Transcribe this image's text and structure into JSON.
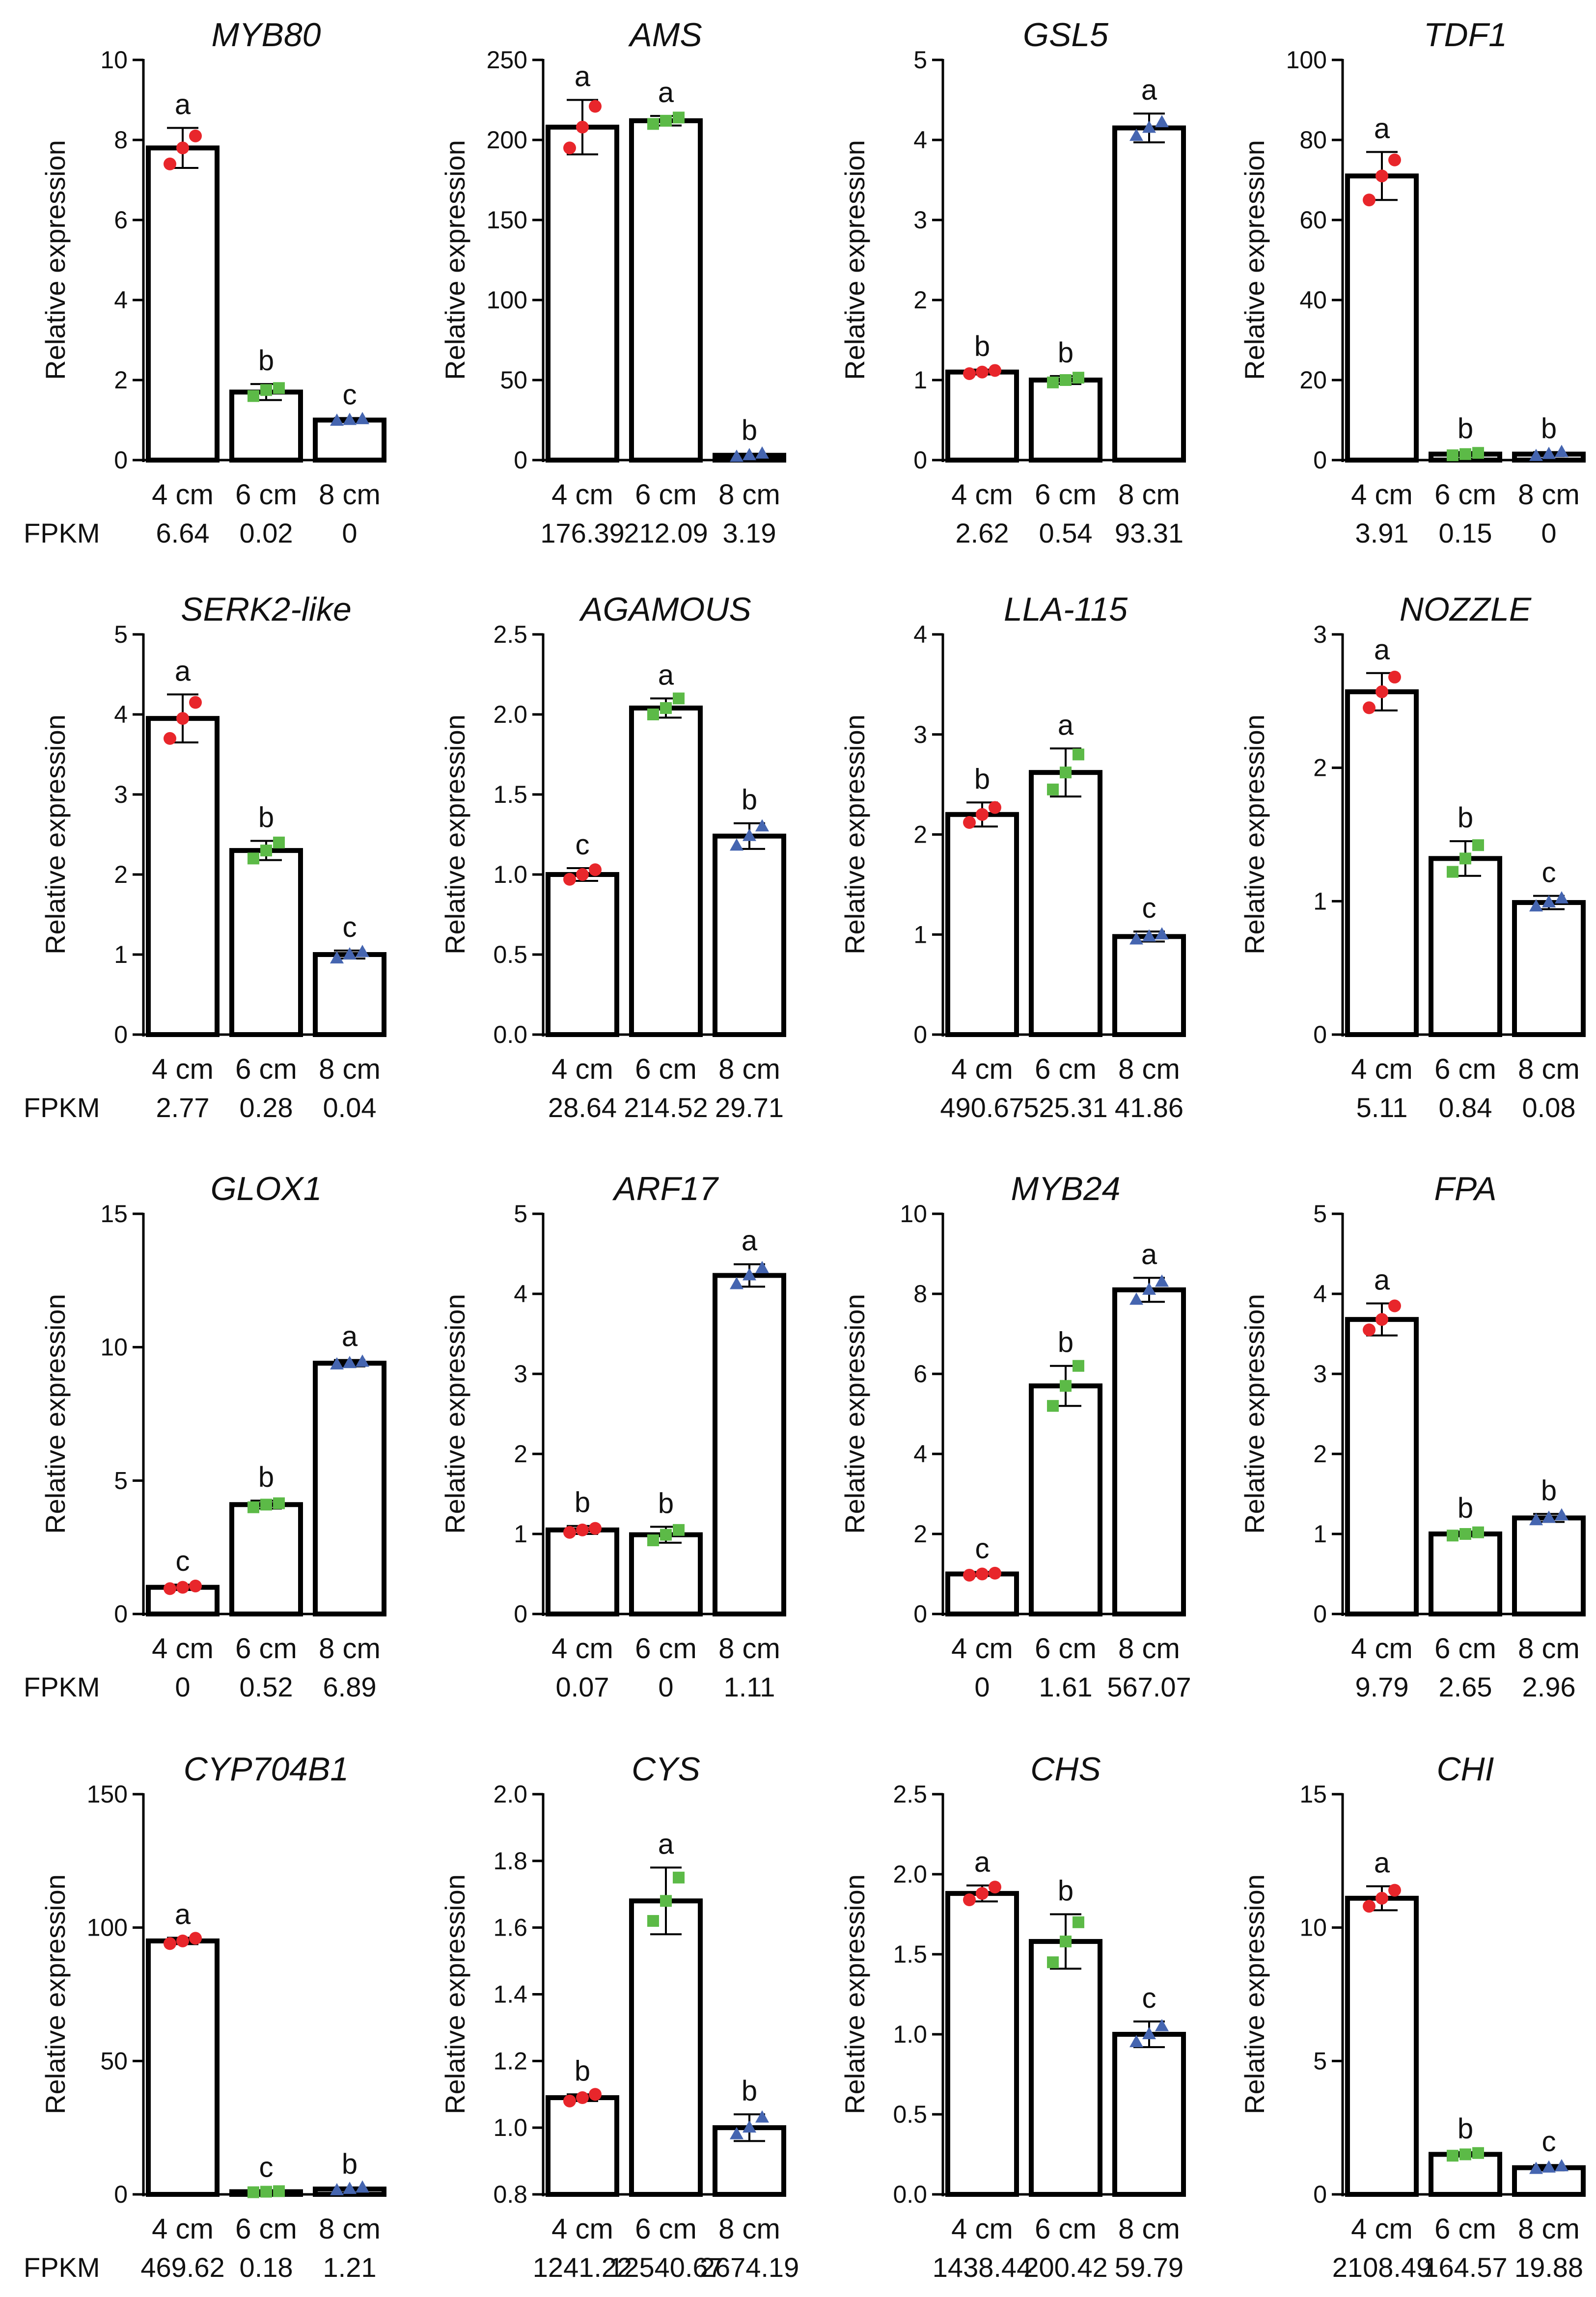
{
  "chart_data": [
    {
      "type": "bar",
      "title": "MYB80",
      "ylabel": "Relative expression",
      "ylim": [
        0,
        10
      ],
      "yticks": [
        0,
        2,
        4,
        6,
        8,
        10
      ],
      "categories": [
        "4 cm",
        "6 cm",
        "8 cm"
      ],
      "values": [
        7.8,
        1.7,
        1.0
      ],
      "errors": [
        0.5,
        0.2,
        0.05
      ],
      "points": [
        [
          7.4,
          7.8,
          8.1
        ],
        [
          1.6,
          1.75,
          1.8
        ],
        [
          0.98,
          1.0,
          1.02
        ]
      ],
      "letters": [
        "a",
        "b",
        "c"
      ],
      "fpkm_label": "FPKM",
      "fpkm": [
        "6.64",
        "0.02",
        "0"
      ]
    },
    {
      "type": "bar",
      "title": "AMS",
      "ylabel": "Relative expression",
      "ylim": [
        0,
        250
      ],
      "yticks": [
        0,
        50,
        100,
        150,
        200,
        250
      ],
      "categories": [
        "4 cm",
        "6 cm",
        "8 cm"
      ],
      "values": [
        208,
        212,
        3
      ],
      "errors": [
        17,
        3,
        1
      ],
      "points": [
        [
          195,
          208,
          221
        ],
        [
          210,
          212,
          214
        ],
        [
          2,
          3,
          4
        ]
      ],
      "letters": [
        "a",
        "a",
        "b"
      ],
      "fpkm_label": "",
      "fpkm": [
        "176.39",
        "212.09",
        "3.19"
      ]
    },
    {
      "type": "bar",
      "title": "GSL5",
      "ylabel": "Relative expression",
      "ylim": [
        0,
        5
      ],
      "yticks": [
        0,
        1,
        2,
        3,
        4,
        5
      ],
      "categories": [
        "4 cm",
        "6 cm",
        "8 cm"
      ],
      "values": [
        1.1,
        1.0,
        4.15
      ],
      "errors": [
        0.03,
        0.05,
        0.18
      ],
      "points": [
        [
          1.08,
          1.1,
          1.12
        ],
        [
          0.97,
          1.0,
          1.03
        ],
        [
          4.05,
          4.15,
          4.22
        ]
      ],
      "letters": [
        "b",
        "b",
        "a"
      ],
      "fpkm_label": "",
      "fpkm": [
        "2.62",
        "0.54",
        "93.31"
      ]
    },
    {
      "type": "bar",
      "title": "TDF1",
      "ylabel": "Relative expression",
      "ylim": [
        0,
        100
      ],
      "yticks": [
        0,
        20,
        40,
        60,
        80,
        100
      ],
      "categories": [
        "4 cm",
        "6 cm",
        "8 cm"
      ],
      "values": [
        71,
        1.5,
        1.5
      ],
      "errors": [
        6,
        0.5,
        0.5
      ],
      "points": [
        [
          65,
          71,
          75
        ],
        [
          1.2,
          1.5,
          1.8
        ],
        [
          1.0,
          1.5,
          2.0
        ]
      ],
      "letters": [
        "a",
        "b",
        "b"
      ],
      "fpkm_label": "",
      "fpkm": [
        "3.91",
        "0.15",
        "0"
      ]
    },
    {
      "type": "bar",
      "title": "SERK2-like",
      "ylabel": "Relative expression",
      "ylim": [
        0,
        5
      ],
      "yticks": [
        0,
        1,
        2,
        3,
        4,
        5
      ],
      "categories": [
        "4 cm",
        "6 cm",
        "8 cm"
      ],
      "values": [
        3.95,
        2.3,
        1.0
      ],
      "errors": [
        0.3,
        0.12,
        0.05
      ],
      "points": [
        [
          3.7,
          3.95,
          4.15
        ],
        [
          2.2,
          2.3,
          2.4
        ],
        [
          0.95,
          1.0,
          1.03
        ]
      ],
      "letters": [
        "a",
        "b",
        "c"
      ],
      "fpkm_label": "FPKM",
      "fpkm": [
        "2.77",
        "0.28",
        "0.04"
      ]
    },
    {
      "type": "bar",
      "title": "AGAMOUS",
      "ylabel": "Relative expression",
      "ylim": [
        0,
        2.5
      ],
      "yticks": [
        "0.0",
        "0.5",
        "1.0",
        "1.5",
        "2.0",
        "2.5"
      ],
      "categories": [
        "4 cm",
        "6 cm",
        "8 cm"
      ],
      "values": [
        1.0,
        2.04,
        1.24
      ],
      "errors": [
        0.04,
        0.06,
        0.08
      ],
      "points": [
        [
          0.97,
          1.0,
          1.03
        ],
        [
          2.0,
          2.04,
          2.1
        ],
        [
          1.18,
          1.24,
          1.3
        ]
      ],
      "letters": [
        "c",
        "a",
        "b"
      ],
      "fpkm_label": "",
      "fpkm": [
        "28.64",
        "214.52",
        "29.71"
      ]
    },
    {
      "type": "bar",
      "title": "LLA-115",
      "ylabel": "Relative expression",
      "ylim": [
        0,
        4
      ],
      "yticks": [
        0,
        1,
        2,
        3,
        4
      ],
      "categories": [
        "4 cm",
        "6 cm",
        "8 cm"
      ],
      "values": [
        2.2,
        2.62,
        0.98
      ],
      "errors": [
        0.12,
        0.24,
        0.05
      ],
      "points": [
        [
          2.12,
          2.2,
          2.27
        ],
        [
          2.45,
          2.62,
          2.8
        ],
        [
          0.95,
          0.98,
          1.0
        ]
      ],
      "letters": [
        "b",
        "a",
        "c"
      ],
      "fpkm_label": "",
      "fpkm": [
        "490.67",
        "525.31",
        "41.86"
      ]
    },
    {
      "type": "bar",
      "title": "NOZZLE",
      "ylabel": "Relative expression",
      "ylim": [
        0,
        3
      ],
      "yticks": [
        0,
        1,
        2,
        3
      ],
      "categories": [
        "4 cm",
        "6 cm",
        "8 cm"
      ],
      "values": [
        2.57,
        1.32,
        0.99
      ],
      "errors": [
        0.14,
        0.13,
        0.05
      ],
      "points": [
        [
          2.45,
          2.57,
          2.68
        ],
        [
          1.22,
          1.32,
          1.42
        ],
        [
          0.96,
          0.99,
          1.02
        ]
      ],
      "letters": [
        "a",
        "b",
        "c"
      ],
      "fpkm_label": "",
      "fpkm": [
        "5.11",
        "0.84",
        "0.08"
      ]
    },
    {
      "type": "bar",
      "title": "GLOX1",
      "ylabel": "Relative expression",
      "ylim": [
        0,
        15
      ],
      "yticks": [
        0,
        5,
        10,
        15
      ],
      "categories": [
        "4 cm",
        "6 cm",
        "8 cm"
      ],
      "values": [
        1.0,
        4.1,
        9.4
      ],
      "errors": [
        0.1,
        0.15,
        0.12
      ],
      "points": [
        [
          0.95,
          1.0,
          1.05
        ],
        [
          4.0,
          4.1,
          4.15
        ],
        [
          9.35,
          9.4,
          9.45
        ]
      ],
      "letters": [
        "c",
        "b",
        "a"
      ],
      "fpkm_label": "FPKM",
      "fpkm": [
        "0",
        "0.52",
        "6.89"
      ]
    },
    {
      "type": "bar",
      "title": "ARF17",
      "ylabel": "Relative expression",
      "ylim": [
        0,
        5
      ],
      "yticks": [
        0,
        1,
        2,
        3,
        4,
        5
      ],
      "categories": [
        "4 cm",
        "6 cm",
        "8 cm"
      ],
      "values": [
        1.05,
        0.99,
        4.23
      ],
      "errors": [
        0.05,
        0.1,
        0.14
      ],
      "points": [
        [
          1.02,
          1.05,
          1.07
        ],
        [
          0.92,
          0.99,
          1.05
        ],
        [
          4.12,
          4.23,
          4.32
        ]
      ],
      "letters": [
        "b",
        "b",
        "a"
      ],
      "fpkm_label": "",
      "fpkm": [
        "0.07",
        "0",
        "1.11"
      ]
    },
    {
      "type": "bar",
      "title": "MYB24",
      "ylabel": "Relative expression",
      "ylim": [
        0,
        10
      ],
      "yticks": [
        0,
        2,
        4,
        6,
        8,
        10
      ],
      "categories": [
        "4 cm",
        "6 cm",
        "8 cm"
      ],
      "values": [
        1.0,
        5.7,
        8.1
      ],
      "errors": [
        0.05,
        0.5,
        0.3
      ],
      "points": [
        [
          0.97,
          1.0,
          1.02
        ],
        [
          5.2,
          5.7,
          6.2
        ],
        [
          7.85,
          8.1,
          8.3
        ]
      ],
      "letters": [
        "c",
        "b",
        "a"
      ],
      "fpkm_label": "",
      "fpkm": [
        "0",
        "1.61",
        "567.07"
      ]
    },
    {
      "type": "bar",
      "title": "FPA",
      "ylabel": "Relative expression",
      "ylim": [
        0,
        5
      ],
      "yticks": [
        0,
        1,
        2,
        3,
        4,
        5
      ],
      "categories": [
        "4 cm",
        "6 cm",
        "8 cm"
      ],
      "values": [
        3.68,
        1.0,
        1.2
      ],
      "errors": [
        0.2,
        0.03,
        0.05
      ],
      "points": [
        [
          3.55,
          3.68,
          3.85
        ],
        [
          0.98,
          1.0,
          1.02
        ],
        [
          1.17,
          1.2,
          1.23
        ]
      ],
      "letters": [
        "a",
        "b",
        "b"
      ],
      "fpkm_label": "",
      "fpkm": [
        "9.79",
        "2.65",
        "2.96"
      ]
    },
    {
      "type": "bar",
      "title": "CYP704B1",
      "ylabel": "Relative expression",
      "ylim": [
        0,
        150
      ],
      "yticks": [
        0,
        50,
        100,
        150
      ],
      "categories": [
        "4 cm",
        "6 cm",
        "8 cm"
      ],
      "values": [
        95,
        1.0,
        2.0
      ],
      "errors": [
        1.2,
        0.4,
        0.6
      ],
      "points": [
        [
          94,
          95,
          96
        ],
        [
          0.8,
          1.0,
          1.2
        ],
        [
          1.5,
          2.0,
          2.5
        ]
      ],
      "letters": [
        "a",
        "c",
        "b"
      ],
      "fpkm_label": "FPKM",
      "fpkm": [
        "469.62",
        "0.18",
        "1.21"
      ]
    },
    {
      "type": "bar",
      "title": "CYS",
      "ylabel": "Relative expression",
      "ylim": [
        0.8,
        2.0
      ],
      "yticks": [
        "0.8",
        "1.0",
        "1.2",
        "1.4",
        "1.6",
        "1.8",
        "2.0"
      ],
      "categories": [
        "4 cm",
        "6 cm",
        "8 cm"
      ],
      "values": [
        1.09,
        1.68,
        1.0
      ],
      "errors": [
        0.01,
        0.1,
        0.04
      ],
      "points": [
        [
          1.08,
          1.09,
          1.1
        ],
        [
          1.62,
          1.68,
          1.75
        ],
        [
          0.98,
          1.0,
          1.03
        ]
      ],
      "letters": [
        "b",
        "a",
        "b"
      ],
      "fpkm_label": "",
      "fpkm": [
        "1241.22",
        "12540.67",
        "2674.19"
      ]
    },
    {
      "type": "bar",
      "title": "CHS",
      "ylabel": "Relative expression",
      "ylim": [
        0,
        2.5
      ],
      "yticks": [
        "0.0",
        "0.5",
        "1.0",
        "1.5",
        "2.0",
        "2.5"
      ],
      "categories": [
        "4 cm",
        "6 cm",
        "8 cm"
      ],
      "values": [
        1.88,
        1.58,
        1.0
      ],
      "errors": [
        0.05,
        0.17,
        0.08
      ],
      "points": [
        [
          1.84,
          1.88,
          1.92
        ],
        [
          1.45,
          1.58,
          1.7
        ],
        [
          0.95,
          1.0,
          1.05
        ]
      ],
      "letters": [
        "a",
        "b",
        "c"
      ],
      "fpkm_label": "",
      "fpkm": [
        "1438.44",
        "200.42",
        "59.79"
      ]
    },
    {
      "type": "bar",
      "title": "CHI",
      "ylabel": "Relative expression",
      "ylim": [
        0,
        15
      ],
      "yticks": [
        0,
        5,
        10,
        15
      ],
      "categories": [
        "4 cm",
        "6 cm",
        "8 cm"
      ],
      "values": [
        11.1,
        1.5,
        1.0
      ],
      "errors": [
        0.45,
        0.08,
        0.1
      ],
      "points": [
        [
          10.8,
          11.1,
          11.4
        ],
        [
          1.45,
          1.5,
          1.55
        ],
        [
          0.95,
          1.0,
          1.05
        ]
      ],
      "letters": [
        "a",
        "b",
        "c"
      ],
      "fpkm_label": "",
      "fpkm": [
        "2108.49",
        "164.57",
        "19.88"
      ]
    }
  ],
  "colors": {
    "bar_fill": "#ffffff",
    "axis": "#000000",
    "group_4cm": "#e8262b",
    "group_6cm": "#5cba47",
    "group_8cm": "#4565b0"
  }
}
